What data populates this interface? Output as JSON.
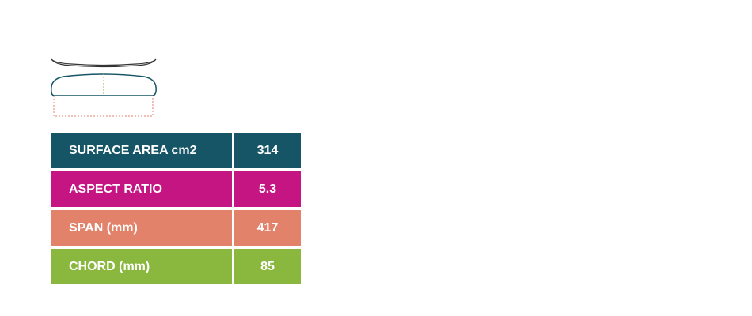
{
  "table": {
    "rows": [
      [
        "SURFACE AREA cm2",
        314
      ],
      [
        "ASPECT RATIO",
        5.3
      ],
      [
        "SPAN (mm)",
        417
      ],
      [
        "CHORD (mm)",
        85
      ]
    ]
  }
}
